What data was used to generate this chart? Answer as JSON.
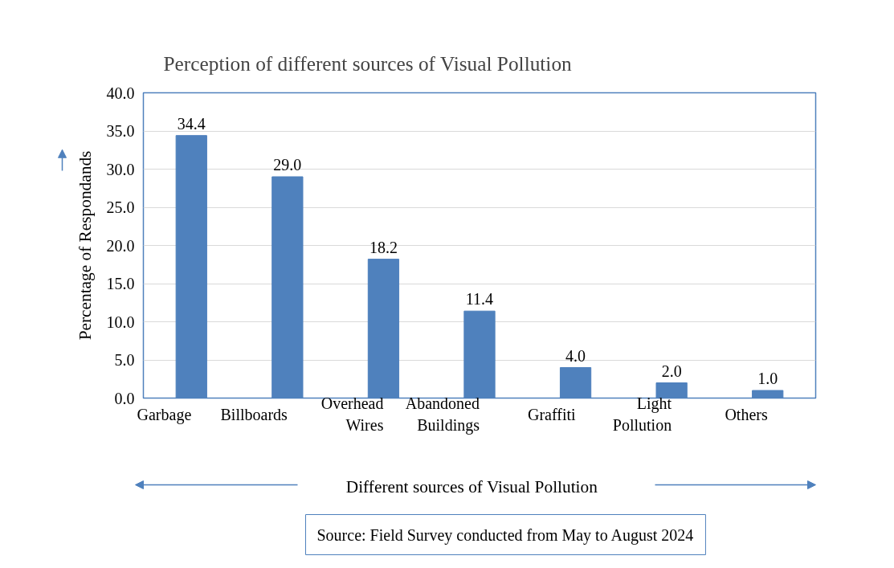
{
  "chart_data": {
    "type": "bar",
    "title": "Perception of different sources of Visual Pollution",
    "xlabel": "Different sources of Visual Pollution",
    "ylabel": "Percentage of Respondands",
    "categories": [
      "Garbage",
      "Billboards",
      "Overhead Wires",
      "Abandoned Buildings",
      "Graffiti",
      "Light Pollution",
      "Others"
    ],
    "values": [
      34.4,
      29.0,
      18.2,
      11.4,
      4.0,
      2.0,
      1.0
    ],
    "value_labels": [
      "34.4",
      "29.0",
      "18.2",
      "11.4",
      "4.0",
      "2.0",
      "1.0"
    ],
    "color": "#4f81bd",
    "ylim": [
      0,
      40
    ],
    "yticks": [
      {
        "value": 0,
        "label": "0.0"
      },
      {
        "value": 5,
        "label": "5.0"
      },
      {
        "value": 10,
        "label": "10.0"
      },
      {
        "value": 15,
        "label": "15.0"
      },
      {
        "value": 20,
        "label": "20.0"
      },
      {
        "value": 25,
        "label": "25.0"
      },
      {
        "value": 30,
        "label": "30.0"
      },
      {
        "value": 35,
        "label": "35.0"
      },
      {
        "value": 40,
        "label": "40.0"
      }
    ],
    "grid": "y",
    "annotations": [
      "Source: Field Survey conducted from May to August 2024"
    ]
  }
}
